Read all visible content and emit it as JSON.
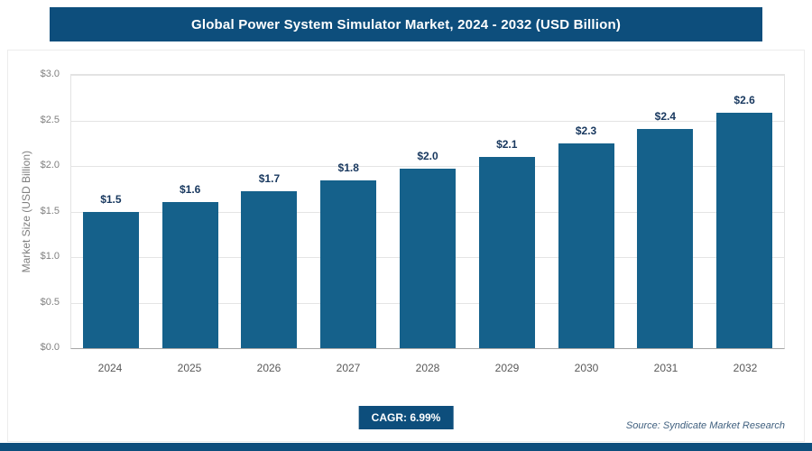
{
  "header": {
    "title": "Global Power System Simulator Market, 2024 - 2032 (USD Billion)"
  },
  "chart_data": {
    "type": "bar",
    "title": "Global Power System Simulator Market, 2024 - 2032 (USD Billion)",
    "categories": [
      "2024",
      "2025",
      "2026",
      "2027",
      "2028",
      "2029",
      "2030",
      "2031",
      "2032"
    ],
    "values": [
      1.5,
      1.6,
      1.72,
      1.84,
      1.97,
      2.1,
      2.25,
      2.41,
      2.58
    ],
    "bar_labels": [
      "$1.5",
      "$1.6",
      "$1.7",
      "$1.8",
      "$2.0",
      "$2.1",
      "$2.3",
      "$2.4",
      "$2.6"
    ],
    "xlabel": "",
    "ylabel": "Market Size (USD Billion)",
    "ylim": [
      0,
      3.0
    ],
    "ytick_labels": [
      "$0.0",
      "$0.5",
      "$1.0",
      "$1.5",
      "$2.0",
      "$2.5",
      "$3.0"
    ],
    "grid": true,
    "legend": "none",
    "bar_color": "#15618b"
  },
  "footer": {
    "cagr_label": "CAGR: 6.99%",
    "source": "Source: Syndicate Market Research"
  },
  "colors": {
    "accent": "#0d4e7c",
    "bar": "#15618b",
    "value_label": "#17375e",
    "tick_label": "#808080",
    "year_label": "#595959",
    "grid": "#e4e4e4",
    "source_text": "#40607f"
  }
}
